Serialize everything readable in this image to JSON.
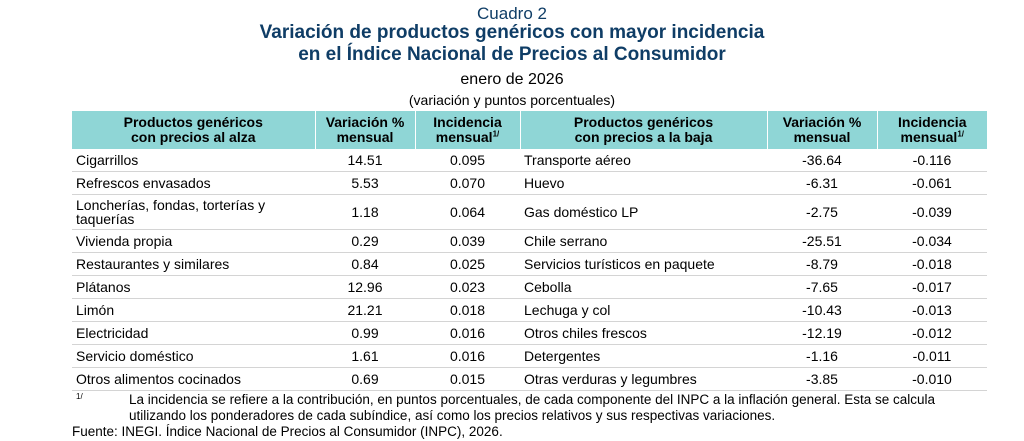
{
  "caption": {
    "label": "Cuadro 2",
    "title_line1": "Variación de productos genéricos con mayor incidencia",
    "title_line2": "en el Índice Nacional de Precios al Consumidor",
    "period": "enero de 2026",
    "units": "(variación y puntos porcentuales)"
  },
  "colors": {
    "header_bg": "#8fd6d6",
    "title": "#0f3d66"
  },
  "table": {
    "headers": {
      "up_products_l1": "Productos genéricos",
      "up_products_l2": "con precios al alza",
      "variation_l1": "Variación %",
      "variation_l2": "mensual",
      "incidence_l1": "Incidencia",
      "incidence_l2": "mensual",
      "note_mark": "1/",
      "down_products_l1": "Productos genéricos",
      "down_products_l2": "con precios a la baja"
    },
    "rows": [
      {
        "up_name": "Cigarrillos",
        "up_var": "14.51",
        "up_inc": "0.095",
        "down_name": "Transporte aéreo",
        "down_var": "-36.64",
        "down_inc": "-0.116"
      },
      {
        "up_name": "Refrescos envasados",
        "up_var": "5.53",
        "up_inc": "0.070",
        "down_name": "Huevo",
        "down_var": "-6.31",
        "down_inc": "-0.061"
      },
      {
        "up_name": "Loncherías, fondas, torterías y taquerías",
        "up_var": "1.18",
        "up_inc": "0.064",
        "down_name": "Gas doméstico LP",
        "down_var": "-2.75",
        "down_inc": "-0.039"
      },
      {
        "up_name": "Vivienda propia",
        "up_var": "0.29",
        "up_inc": "0.039",
        "down_name": "Chile serrano",
        "down_var": "-25.51",
        "down_inc": "-0.034"
      },
      {
        "up_name": "Restaurantes y similares",
        "up_var": "0.84",
        "up_inc": "0.025",
        "down_name": "Servicios turísticos en paquete",
        "down_var": "-8.79",
        "down_inc": "-0.018"
      },
      {
        "up_name": "Plátanos",
        "up_var": "12.96",
        "up_inc": "0.023",
        "down_name": "Cebolla",
        "down_var": "-7.65",
        "down_inc": "-0.017"
      },
      {
        "up_name": "Limón",
        "up_var": "21.21",
        "up_inc": "0.018",
        "down_name": "Lechuga y col",
        "down_var": "-10.43",
        "down_inc": "-0.013"
      },
      {
        "up_name": "Electricidad",
        "up_var": "0.99",
        "up_inc": "0.016",
        "down_name": "Otros chiles frescos",
        "down_var": "-12.19",
        "down_inc": "-0.012"
      },
      {
        "up_name": "Servicio doméstico",
        "up_var": "1.61",
        "up_inc": "0.016",
        "down_name": "Detergentes",
        "down_var": "-1.16",
        "down_inc": "-0.011"
      },
      {
        "up_name": "Otros alimentos cocinados",
        "up_var": "0.69",
        "up_inc": "0.015",
        "down_name": "Otras verduras y legumbres",
        "down_var": "-3.85",
        "down_inc": "-0.010"
      }
    ]
  },
  "footnote": {
    "mark": "1/",
    "text": "La incidencia se refiere a la contribución, en puntos porcentuales, de cada componente del INPC a la inflación general. Esta se calcula utilizando los ponderadores de cada subíndice, así como los precios relativos y sus respectivas variaciones."
  },
  "source": "Fuente: INEGI. Índice Nacional de Precios al Consumidor (INPC), 2026."
}
